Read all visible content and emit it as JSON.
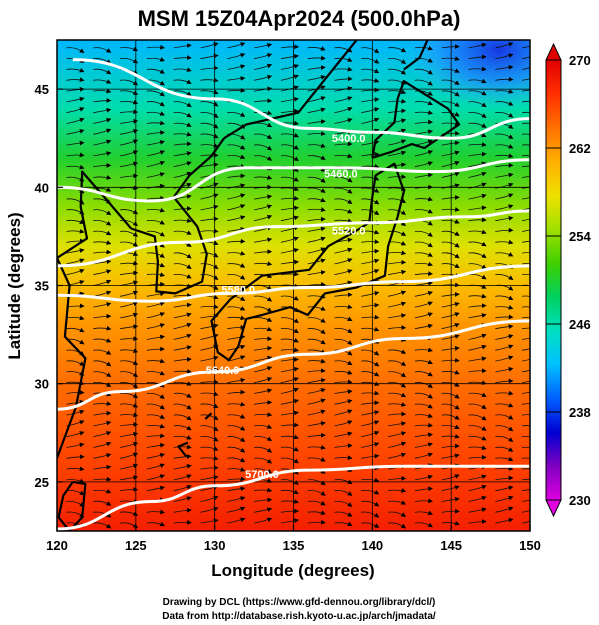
{
  "chart_data": {
    "type": "heatmap",
    "title": "MSM 15Z04Apr2024 (500.0hPa)",
    "xlabel": "Longitude (degrees)",
    "ylabel": "Latitude  (degrees)",
    "xlim": [
      120,
      150
    ],
    "ylim": [
      22.5,
      47.5
    ],
    "x_ticks": [
      120,
      125,
      130,
      135,
      140,
      145,
      150
    ],
    "y_ticks": [
      25,
      30,
      35,
      40,
      45
    ],
    "colorbar": {
      "min": 230,
      "max": 270,
      "ticks": [
        230,
        238,
        246,
        254,
        262,
        270
      ],
      "colors": [
        "#e000e0",
        "#8000c0",
        "#0000d0",
        "#0060ff",
        "#00c0ff",
        "#00e0c0",
        "#00d060",
        "#40d000",
        "#a0e000",
        "#f0e000",
        "#ffb000",
        "#ff7000",
        "#ff3000",
        "#e00000"
      ]
    },
    "contours": [
      {
        "level": "5400.0",
        "points": [
          [
            121,
            46.5
          ],
          [
            130,
            44.5
          ],
          [
            136,
            43.0
          ],
          [
            140,
            42.8
          ],
          [
            145,
            42.5
          ],
          [
            150,
            43.5
          ]
        ]
      },
      {
        "level": "5460.0",
        "points": [
          [
            120,
            40.0
          ],
          [
            126,
            39.3
          ],
          [
            132,
            41.0
          ],
          [
            138,
            41.0
          ],
          [
            144,
            40.8
          ],
          [
            150,
            41.4
          ]
        ]
      },
      {
        "level": "5520.0",
        "points": [
          [
            120,
            36.0
          ],
          [
            128,
            37.2
          ],
          [
            134,
            38.0
          ],
          [
            140,
            38.2
          ],
          [
            146,
            38.5
          ],
          [
            150,
            38.8
          ]
        ]
      },
      {
        "level": "5580.0",
        "points": [
          [
            120,
            34.5
          ],
          [
            126,
            34.2
          ],
          [
            131,
            34.6
          ],
          [
            136,
            34.9
          ],
          [
            142,
            35.2
          ],
          [
            150,
            36.0
          ]
        ]
      },
      {
        "level": "5640.0",
        "points": [
          [
            120,
            28.7
          ],
          [
            124,
            29.6
          ],
          [
            130,
            30.6
          ],
          [
            136,
            31.5
          ],
          [
            142,
            32.3
          ],
          [
            150,
            33.2
          ]
        ]
      },
      {
        "level": "5700.0",
        "points": [
          [
            120,
            22.6
          ],
          [
            126,
            24.0
          ],
          [
            130,
            24.8
          ],
          [
            136,
            25.6
          ],
          [
            142,
            25.8
          ],
          [
            150,
            25.8
          ]
        ]
      }
    ],
    "contour_labels": [
      {
        "text": "5400.0",
        "lon": 138.5,
        "lat": 42.3
      },
      {
        "text": "5460.0",
        "lon": 138.0,
        "lat": 40.5
      },
      {
        "text": "5520.0",
        "lon": 138.5,
        "lat": 37.6
      },
      {
        "text": "5580.0",
        "lon": 131.5,
        "lat": 34.6
      },
      {
        "text": "5640.0",
        "lon": 130.5,
        "lat": 30.5
      },
      {
        "text": "5700.0",
        "lon": 133.0,
        "lat": 25.2
      }
    ],
    "temperature_gradient": [
      {
        "lat": 47.5,
        "value": 242
      },
      {
        "lat": 44.0,
        "value": 246
      },
      {
        "lat": 41.5,
        "value": 250
      },
      {
        "lat": 39.0,
        "value": 254
      },
      {
        "lat": 37.0,
        "value": 257
      },
      {
        "lat": 35.0,
        "value": 260
      },
      {
        "lat": 33.0,
        "value": 262
      },
      {
        "lat": 30.0,
        "value": 264
      },
      {
        "lat": 26.0,
        "value": 266
      },
      {
        "lat": 22.5,
        "value": 268
      }
    ],
    "cold_pool": {
      "lon": 148.0,
      "lat": 47.0,
      "value": 238
    }
  },
  "footer": {
    "line1": "Drawing by DCL (https://www.gfd-dennou.org/library/dcl/)",
    "line2": "Data from http://database.rish.kyoto-u.ac.jp/arch/jmadata/"
  }
}
